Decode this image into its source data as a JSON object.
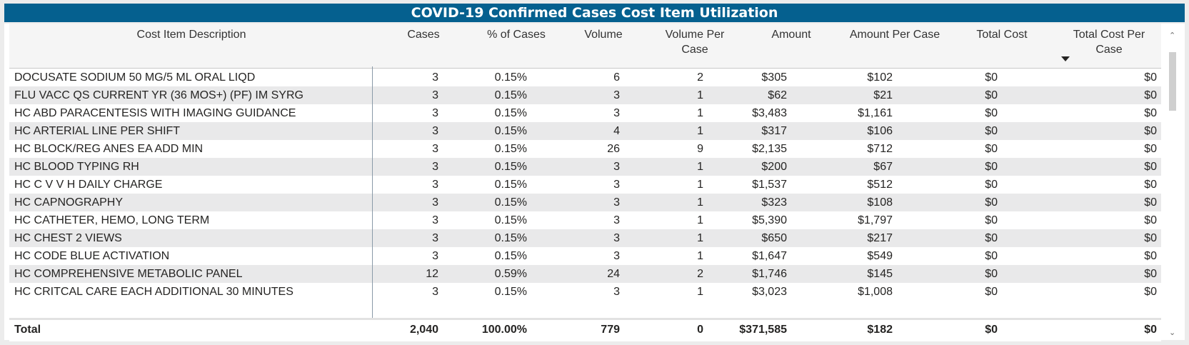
{
  "title": "COVID-19 Confirmed Cases Cost Item Utilization",
  "columns": {
    "description": "Cost Item Description",
    "cases": "Cases",
    "pct_cases": "% of Cases",
    "volume": "Volume",
    "volume_per_case_1": "Volume Per",
    "volume_per_case_2": "Case",
    "amount": "Amount",
    "amount_per_case": "Amount Per Case",
    "total_cost": "Total Cost",
    "total_cost_per_case_1": "Total Cost Per",
    "total_cost_per_case_2": "Case"
  },
  "rows": [
    {
      "description": "DOCUSATE SODIUM 50 MG/5 ML ORAL LIQD",
      "cases": "3",
      "pct": "0.15%",
      "volume": "6",
      "vpc": "2",
      "amount": "$305",
      "apc": "$102",
      "total_cost": "$0",
      "tcpc": "$0"
    },
    {
      "description": "FLU VACC QS CURRENT YR (36 MOS+) (PF) IM SYRG",
      "cases": "3",
      "pct": "0.15%",
      "volume": "3",
      "vpc": "1",
      "amount": "$62",
      "apc": "$21",
      "total_cost": "$0",
      "tcpc": "$0"
    },
    {
      "description": "HC ABD PARACENTESIS WITH IMAGING GUIDANCE",
      "cases": "3",
      "pct": "0.15%",
      "volume": "3",
      "vpc": "1",
      "amount": "$3,483",
      "apc": "$1,161",
      "total_cost": "$0",
      "tcpc": "$0"
    },
    {
      "description": "HC ARTERIAL LINE PER SHIFT",
      "cases": "3",
      "pct": "0.15%",
      "volume": "4",
      "vpc": "1",
      "amount": "$317",
      "apc": "$106",
      "total_cost": "$0",
      "tcpc": "$0"
    },
    {
      "description": "HC BLOCK/REG ANES EA ADD MIN",
      "cases": "3",
      "pct": "0.15%",
      "volume": "26",
      "vpc": "9",
      "amount": "$2,135",
      "apc": "$712",
      "total_cost": "$0",
      "tcpc": "$0"
    },
    {
      "description": "HC BLOOD TYPING RH",
      "cases": "3",
      "pct": "0.15%",
      "volume": "3",
      "vpc": "1",
      "amount": "$200",
      "apc": "$67",
      "total_cost": "$0",
      "tcpc": "$0"
    },
    {
      "description": "HC C V V H DAILY CHARGE",
      "cases": "3",
      "pct": "0.15%",
      "volume": "3",
      "vpc": "1",
      "amount": "$1,537",
      "apc": "$512",
      "total_cost": "$0",
      "tcpc": "$0"
    },
    {
      "description": "HC CAPNOGRAPHY",
      "cases": "3",
      "pct": "0.15%",
      "volume": "3",
      "vpc": "1",
      "amount": "$323",
      "apc": "$108",
      "total_cost": "$0",
      "tcpc": "$0"
    },
    {
      "description": "HC CATHETER, HEMO, LONG TERM",
      "cases": "3",
      "pct": "0.15%",
      "volume": "3",
      "vpc": "1",
      "amount": "$5,390",
      "apc": "$1,797",
      "total_cost": "$0",
      "tcpc": "$0"
    },
    {
      "description": "HC CHEST 2 VIEWS",
      "cases": "3",
      "pct": "0.15%",
      "volume": "3",
      "vpc": "1",
      "amount": "$650",
      "apc": "$217",
      "total_cost": "$0",
      "tcpc": "$0"
    },
    {
      "description": "HC CODE BLUE ACTIVATION",
      "cases": "3",
      "pct": "0.15%",
      "volume": "3",
      "vpc": "1",
      "amount": "$1,647",
      "apc": "$549",
      "total_cost": "$0",
      "tcpc": "$0"
    },
    {
      "description": "HC COMPREHENSIVE METABOLIC PANEL",
      "cases": "12",
      "pct": "0.59%",
      "volume": "24",
      "vpc": "2",
      "amount": "$1,746",
      "apc": "$145",
      "total_cost": "$0",
      "tcpc": "$0"
    },
    {
      "description": "HC CRITCAL CARE EACH ADDITIONAL 30 MINUTES",
      "cases": "3",
      "pct": "0.15%",
      "volume": "3",
      "vpc": "1",
      "amount": "$3,023",
      "apc": "$1,008",
      "total_cost": "$0",
      "tcpc": "$0"
    }
  ],
  "total": {
    "label": "Total",
    "cases": "2,040",
    "pct": "100.00%",
    "volume": "779",
    "vpc": "0",
    "amount": "$371,585",
    "apc": "$182",
    "total_cost": "$0",
    "tcpc": "$0"
  },
  "icons": {
    "sort": "sort-desc-icon",
    "scroll_up": "chevron-up-icon",
    "scroll_down": "chevron-down-icon"
  }
}
